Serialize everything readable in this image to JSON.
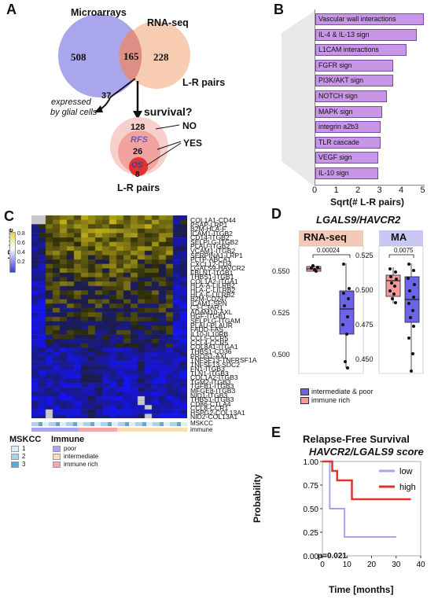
{
  "panel_a": {
    "letter": "A",
    "microarrays_label": "Microarrays",
    "rnaseq_label": "RNA-seq",
    "count_micro_only": "508",
    "count_overlap": "165",
    "count_rnaseq_only": "228",
    "lr_pairs_label": "L-R pairs",
    "glial_count": "37",
    "glial_text_line1": "expressed",
    "glial_text_line2": "by glial cells",
    "survival_question": "survival?",
    "no_count": "128",
    "rfs_label": "RFS",
    "rfs_count": "26",
    "os_label": "OS",
    "os_count": "8",
    "no_label": "NO",
    "yes_label": "YES",
    "bottom_lr_label": "L-R pairs",
    "colors": {
      "micro": "#a9a6ee",
      "rnaseq": "#f7c7a8",
      "overlap": "#dd8f86"
    }
  },
  "panel_b": {
    "letter": "B",
    "pathways": [
      {
        "label": "Vascular wall interactions",
        "value": 5.0
      },
      {
        "label": "IL-4 & IL-13 sign",
        "value": 4.7
      },
      {
        "label": "L1CAM interactions",
        "value": 4.2
      },
      {
        "label": "FGFR sign",
        "value": 3.6
      },
      {
        "label": "PI3K/AKT sign",
        "value": 3.6
      },
      {
        "label": "NOTCH sign",
        "value": 3.3
      },
      {
        "label": "MAPK sign",
        "value": 3.1
      },
      {
        "label": "integrin a2b3",
        "value": 3.0
      },
      {
        "label": "TLR cascade",
        "value": 3.0
      },
      {
        "label": "VEGF sign",
        "value": 2.9
      },
      {
        "label": "IL-10 sign",
        "value": 2.9
      }
    ],
    "ticks": [
      "0",
      "1",
      "2",
      "3",
      "4",
      "5"
    ],
    "xlabel": "Sqrt(# L-R pairs)",
    "bar_color": "#c896e6"
  },
  "panel_c": {
    "letter": "C",
    "legend_title": "LR-score",
    "legend_ticks": [
      "0.8",
      "0.6",
      "0.4",
      "0.2"
    ],
    "gene_pairs": [
      "COL1A1-CD44",
      "PSAP-LRP1",
      "B2M-HLA-F",
      "ICAM1-ITGB2",
      "CD14-ITGB2",
      "SELPLG-ITGB2",
      "PLAU-ITGB2",
      "VCAM1-ITGB2",
      "SERPINA1-LRP1",
      "PLTP-ABCA1",
      "CXCL12-CD4",
      "LGALS9-HAVCR2",
      "FBLN1-ITGB1",
      "THBS1-ITGB1",
      "COL1A2-ITGA1",
      "HLA-A-LILRB2",
      "HLA-C-LILRB2",
      "HLA-F-LILRB2",
      "B2M-CD247",
      "ICAM1-SPN",
      "C3-C3AR1",
      "ADAM10-AXL",
      "HGF-ITGB1",
      "SELPLG-ITGAM",
      "PLAU-PLAUR",
      "FADD-FAS",
      "IL10-IL10RB",
      "CCL5-CCR5",
      "CCL4-CCR5",
      "COL8A1-ITGA1",
      "THBS1-CD36",
      "PROS1-AXL",
      "TNFSF13-TNFRSF1A",
      "TNFSF13-SDC2",
      "FN1-ITGB3",
      "TLN1-ITGB3",
      "COL1A2-ITGB3",
      "TGM2-ITGB3",
      "TGFB1-ITGB3",
      "MFGE8-ITGB3",
      "NID1-ITGB3",
      "THBS1-ITGB3",
      "CD86-CTLA4",
      "CCL8-CCR1",
      "HSPG2-COL13A1",
      "NID2-COL13A1"
    ],
    "mskcc_label": "MSKCC",
    "immune_label": "immune",
    "legend_mskcc_title": "MSKCC",
    "legend_mskcc_items": [
      "1",
      "2",
      "3"
    ],
    "legend_immune_title": "Immune",
    "legend_immune_items": [
      "poor",
      "intermediate",
      "immune rich"
    ],
    "mskcc_colors": [
      "#ddeef8",
      "#a9d2ec",
      "#5aa7d8"
    ],
    "immune_colors": [
      "#a9a6ee",
      "#f7ddb0",
      "#f2a8a8"
    ]
  },
  "panel_d": {
    "letter": "D",
    "title": "LGALS9/HAVCR2",
    "facets": [
      {
        "label": "RNA-seq",
        "pvalue": "0.00024",
        "bg": "#f4c9b6"
      },
      {
        "label": "MA",
        "pvalue": "0.0075",
        "bg": "#c9c7f4"
      }
    ],
    "left_ticks": [
      "0.550",
      "0.525",
      "0.500"
    ],
    "right_ticks": [
      "0.525",
      "0.500",
      "0.475",
      "0.450"
    ],
    "legend": [
      {
        "label": "intermediate & poor",
        "color": "#6b63e8"
      },
      {
        "label": "immune rich",
        "color": "#f29a9a"
      }
    ]
  },
  "panel_e": {
    "letter": "E",
    "title_line1": "Relapse-Free Survival",
    "title_line2": "HAVCR2/LGALS9 score",
    "ylabel": "Probability",
    "xlabel": "Time [months]",
    "y_ticks": [
      "1.00",
      "0.75",
      "0.50",
      "0.25",
      "0.00"
    ],
    "x_ticks": [
      "0",
      "10",
      "20",
      "30",
      "40"
    ],
    "pvalue": "p=0.021",
    "legend": [
      {
        "label": "low",
        "color": "#a6a3ee"
      },
      {
        "label": "high",
        "color": "#e0322e"
      }
    ]
  },
  "chart_data": [
    {
      "type": "bar",
      "categories": [
        "Vascular wall interactions",
        "IL-4 & IL-13 sign",
        "L1CAM interactions",
        "FGFR sign",
        "PI3K/AKT sign",
        "NOTCH sign",
        "MAPK sign",
        "integrin a2b3",
        "TLR cascade",
        "VEGF sign",
        "IL-10 sign"
      ],
      "values": [
        5.0,
        4.7,
        4.2,
        3.6,
        3.6,
        3.3,
        3.1,
        3.0,
        3.0,
        2.9,
        2.9
      ],
      "xlabel": "Sqrt(# L-R pairs)",
      "xlim": [
        0,
        5
      ],
      "orientation": "horizontal"
    },
    {
      "type": "line",
      "title": "Relapse-Free Survival",
      "subtitle": "HAVCR2/LGALS9 score",
      "xlabel": "Time [months]",
      "ylabel": "Probability",
      "xlim": [
        0,
        40
      ],
      "ylim": [
        0,
        1
      ],
      "series": [
        {
          "name": "low",
          "x": [
            0,
            3,
            3,
            9,
            9,
            30
          ],
          "y": [
            1.0,
            1.0,
            0.5,
            0.5,
            0.2,
            0.2
          ]
        },
        {
          "name": "high",
          "x": [
            0,
            4,
            4,
            6,
            6,
            12,
            12,
            36
          ],
          "y": [
            1.0,
            1.0,
            0.9,
            0.9,
            0.8,
            0.8,
            0.6,
            0.6
          ]
        }
      ],
      "annotation": "p=0.021"
    }
  ]
}
